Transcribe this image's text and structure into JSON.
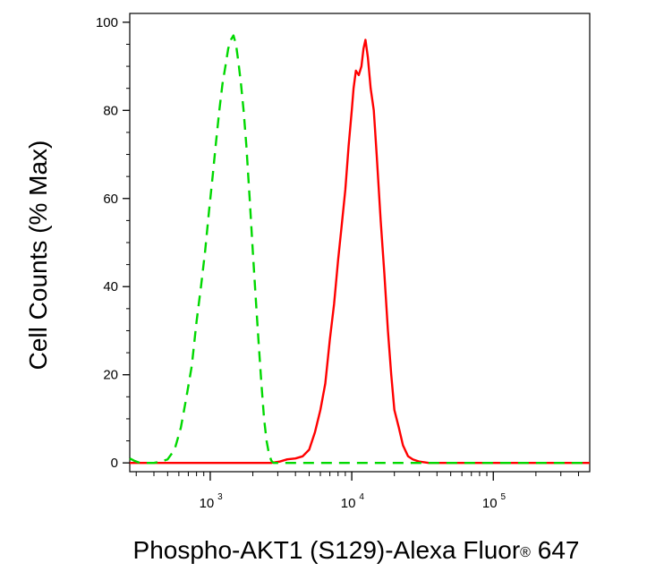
{
  "chart_data": {
    "type": "line",
    "xlabel": "Phospho-AKT1 (S129)-Alexa Fluor",
    "xlabel_registered": "®",
    "xlabel_suffix": " 647",
    "ylabel": "Cell Counts (% Max)",
    "x_scale": "log",
    "xlim": [
      270,
      480000
    ],
    "ylim": [
      -2,
      102
    ],
    "y_ticks": [
      0,
      20,
      40,
      60,
      80,
      100
    ],
    "y_tick_labels": [
      "0",
      "20",
      "40",
      "60",
      "80",
      "100"
    ],
    "x_ticks": [
      1000,
      10000,
      100000
    ],
    "x_tick_labels": [
      {
        "base": "10",
        "exp": "3"
      },
      {
        "base": "10",
        "exp": "4"
      },
      {
        "base": "10",
        "exp": "5"
      }
    ],
    "grid": false,
    "series": [
      {
        "color": "#ff0000",
        "dash": "solid",
        "x": [
          270,
          2000,
          2700,
          3100,
          3500,
          4000,
          4500,
          5000,
          5500,
          6000,
          6500,
          7000,
          7500,
          8000,
          8500,
          9000,
          9500,
          10000,
          10300,
          10700,
          11200,
          11700,
          12100,
          12500,
          13000,
          13600,
          14300,
          15000,
          16000,
          17000,
          18000,
          19000,
          20000,
          21500,
          23000,
          25000,
          27000,
          30000,
          35000,
          100000,
          480000
        ],
        "y": [
          0,
          0,
          0,
          0.3,
          0.8,
          1.0,
          1.5,
          3,
          7,
          12,
          18,
          28,
          36,
          46,
          54,
          62,
          72,
          80,
          85,
          89,
          88,
          90,
          94,
          96,
          92,
          85,
          80,
          70,
          55,
          43,
          30,
          20,
          12,
          8,
          4,
          1.5,
          0.8,
          0.3,
          0,
          0,
          0
        ]
      },
      {
        "color": "#00d800",
        "dash": "dashed",
        "x": [
          270,
          290,
          320,
          360,
          400,
          450,
          500,
          560,
          620,
          680,
          740,
          800,
          860,
          920,
          980,
          1040,
          1100,
          1160,
          1220,
          1280,
          1340,
          1400,
          1460,
          1520,
          1580,
          1650,
          1720,
          1800,
          1900,
          2000,
          2100,
          2200,
          2300,
          2400,
          2500,
          2600,
          2700,
          2800,
          3000,
          3500,
          5000,
          10000,
          30000,
          100000,
          480000
        ],
        "y": [
          1,
          0.5,
          0,
          0,
          0,
          0.3,
          0.8,
          3,
          8,
          15,
          22,
          32,
          40,
          48,
          57,
          65,
          73,
          80,
          86,
          90,
          94,
          96,
          97,
          95,
          91,
          86,
          80,
          72,
          60,
          48,
          37,
          27,
          18,
          10,
          5,
          2,
          0.5,
          0,
          0,
          0,
          0,
          0,
          0,
          0,
          0
        ]
      }
    ]
  }
}
